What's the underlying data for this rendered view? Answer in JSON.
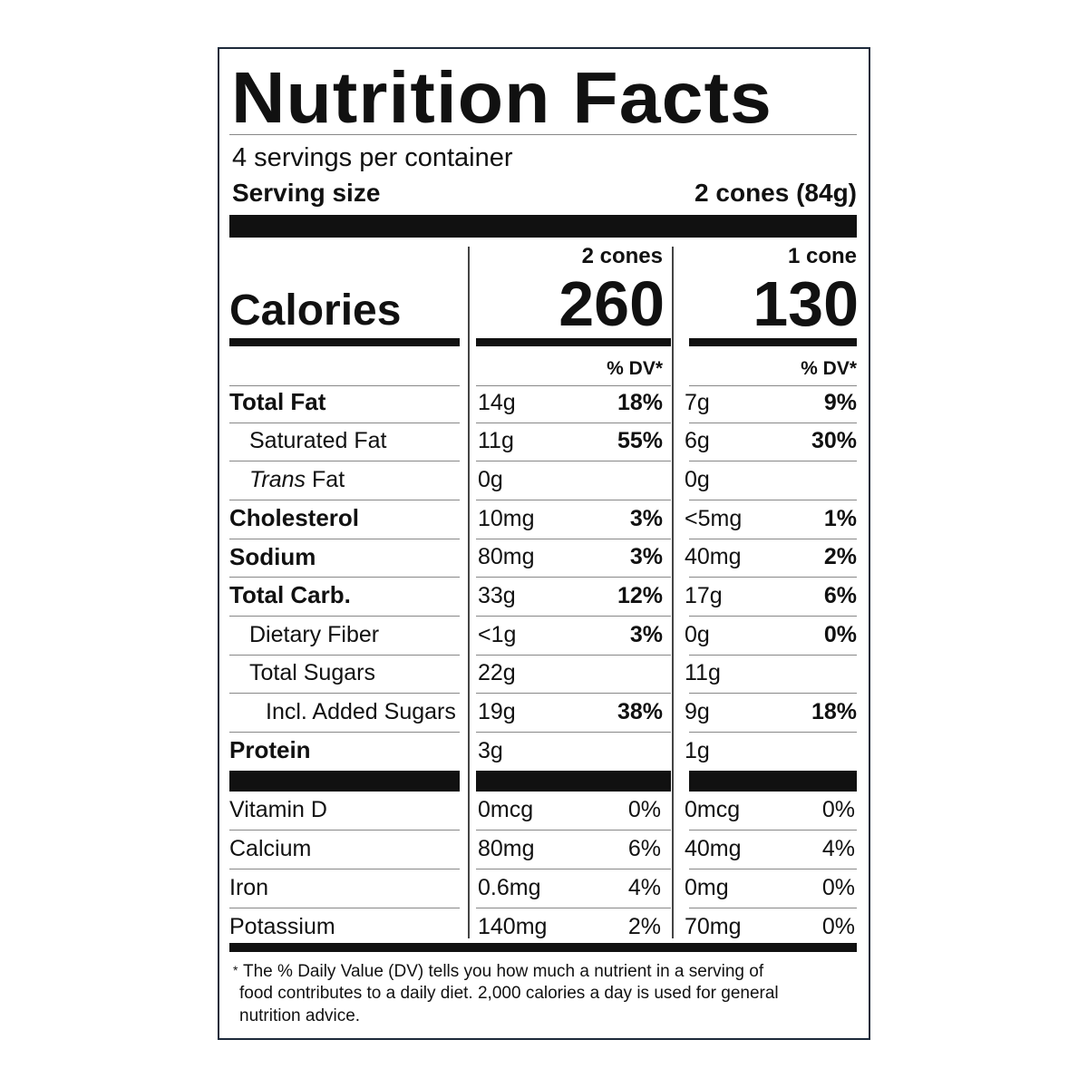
{
  "title": "Nutrition Facts",
  "servings": "4 servings per container",
  "serving_size": {
    "label": "Serving size",
    "value": "2 cones (84g)"
  },
  "calories": {
    "label": "Calories",
    "columns": [
      {
        "header": "2 cones",
        "value": 260
      },
      {
        "header": "1 cone",
        "value": 130
      }
    ]
  },
  "dv_header": [
    "% DV*",
    "% DV*"
  ],
  "nutrients": [
    {
      "name": "Total Fat",
      "bold": true,
      "level": 0,
      "amounts": [
        {
          "amount": "14g",
          "dv": "18%"
        },
        {
          "amount": "7g",
          "dv": "9%"
        }
      ]
    },
    {
      "name": "Saturated Fat",
      "bold": false,
      "level": 1,
      "amounts": [
        {
          "amount": "11g",
          "dv": "55%"
        },
        {
          "amount": "6g",
          "dv": "30%"
        }
      ]
    },
    {
      "name_italic": "Trans",
      "name": "Fat",
      "bold": false,
      "level": 1,
      "amounts": [
        {
          "amount": "0g"
        },
        {
          "amount": "0g"
        }
      ]
    },
    {
      "name": "Cholesterol",
      "bold": true,
      "level": 0,
      "amounts": [
        {
          "amount": "10mg",
          "dv": "3%"
        },
        {
          "amount": "<5mg",
          "dv": "1%"
        }
      ]
    },
    {
      "name": "Sodium",
      "bold": true,
      "level": 0,
      "amounts": [
        {
          "amount": "80mg",
          "dv": "3%"
        },
        {
          "amount": "40mg",
          "dv": "2%"
        }
      ]
    },
    {
      "name": "Total Carb.",
      "bold": true,
      "level": 0,
      "amounts": [
        {
          "amount": "33g",
          "dv": "12%"
        },
        {
          "amount": "17g",
          "dv": "6%"
        }
      ]
    },
    {
      "name": "Dietary Fiber",
      "bold": false,
      "level": 1,
      "amounts": [
        {
          "amount": "<1g",
          "dv": "3%"
        },
        {
          "amount": "0g",
          "dv": "0%"
        }
      ]
    },
    {
      "name": "Total Sugars",
      "bold": false,
      "level": 1,
      "amounts": [
        {
          "amount": "22g"
        },
        {
          "amount": "11g"
        }
      ]
    },
    {
      "name": "Incl. Added Sugars",
      "bold": false,
      "level": 2,
      "amounts": [
        {
          "amount": "19g",
          "dv": "38%"
        },
        {
          "amount": "9g",
          "dv": "18%"
        }
      ]
    },
    {
      "name": "Protein",
      "bold": true,
      "level": 0,
      "amounts": [
        {
          "amount": "3g"
        },
        {
          "amount": "1g"
        }
      ]
    }
  ],
  "vitamins": [
    {
      "name": "Vitamin D",
      "amounts": [
        {
          "amount": "0mcg",
          "dv": "0%"
        },
        {
          "amount": "0mcg",
          "dv": "0%"
        }
      ]
    },
    {
      "name": "Calcium",
      "amounts": [
        {
          "amount": "80mg",
          "dv": "6%"
        },
        {
          "amount": "40mg",
          "dv": "4%"
        }
      ]
    },
    {
      "name": "Iron",
      "amounts": [
        {
          "amount": "0.6mg",
          "dv": "4%"
        },
        {
          "amount": "0mg",
          "dv": "0%"
        }
      ]
    },
    {
      "name": "Potassium",
      "amounts": [
        {
          "amount": "140mg",
          "dv": "2%"
        },
        {
          "amount": "70mg",
          "dv": "0%"
        }
      ]
    }
  ],
  "footnote": {
    "marker": "*",
    "lines": [
      "The % Daily Value (DV) tells you how much a nutrient in a serving of",
      "food contributes to a daily diet. 2,000 calories a day is used for general",
      "nutrition advice."
    ]
  }
}
